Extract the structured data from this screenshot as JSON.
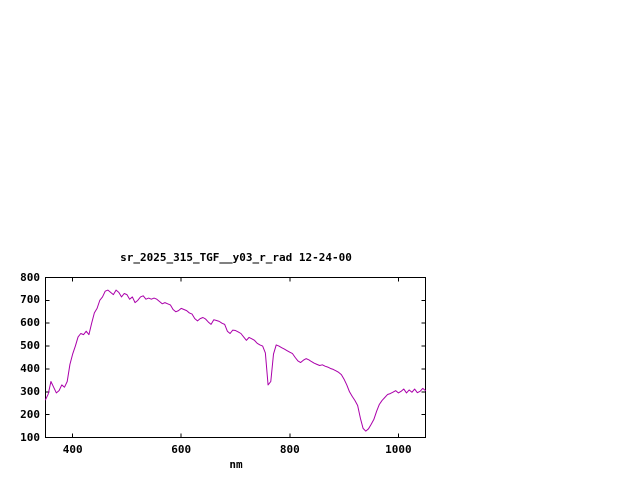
{
  "colors": {
    "line": "#aa00aa",
    "axis": "#000000",
    "background": "#ffffff",
    "text": "#000000"
  },
  "chart_data": {
    "type": "line",
    "title": "sr_2025_315_TGF__y03_r_rad 12-24-00",
    "xlabel": "nm",
    "ylabel": "",
    "xlim": [
      350,
      1050
    ],
    "ylim": [
      100,
      800
    ],
    "x_ticks": [
      400,
      600,
      800,
      1000
    ],
    "y_ticks": [
      100,
      200,
      300,
      400,
      500,
      600,
      700,
      800
    ],
    "grid": false,
    "legend": "none",
    "series_name": "sr_2025_315_TGF__y03_r_rad",
    "x": [
      350,
      355,
      360,
      365,
      370,
      375,
      380,
      385,
      390,
      395,
      400,
      405,
      410,
      415,
      420,
      425,
      430,
      435,
      440,
      445,
      450,
      455,
      460,
      465,
      470,
      475,
      480,
      485,
      490,
      495,
      500,
      505,
      510,
      515,
      520,
      525,
      530,
      535,
      540,
      545,
      550,
      555,
      560,
      565,
      570,
      575,
      580,
      585,
      590,
      595,
      600,
      605,
      610,
      615,
      620,
      625,
      630,
      635,
      640,
      645,
      650,
      655,
      660,
      665,
      670,
      675,
      680,
      685,
      690,
      695,
      700,
      705,
      710,
      715,
      720,
      725,
      730,
      735,
      740,
      745,
      750,
      755,
      760,
      765,
      770,
      775,
      780,
      785,
      790,
      795,
      800,
      805,
      810,
      815,
      820,
      825,
      830,
      835,
      840,
      845,
      850,
      855,
      860,
      865,
      870,
      875,
      880,
      885,
      890,
      895,
      900,
      905,
      910,
      915,
      920,
      925,
      930,
      935,
      940,
      945,
      950,
      955,
      960,
      965,
      970,
      975,
      980,
      985,
      990,
      995,
      1000,
      1005,
      1010,
      1015,
      1020,
      1025,
      1030,
      1035,
      1040,
      1045,
      1050
    ],
    "y": [
      265,
      290,
      345,
      320,
      295,
      305,
      330,
      320,
      345,
      420,
      465,
      500,
      540,
      555,
      550,
      565,
      550,
      600,
      645,
      665,
      700,
      715,
      740,
      745,
      735,
      725,
      745,
      735,
      715,
      730,
      725,
      705,
      715,
      690,
      700,
      715,
      720,
      705,
      710,
      705,
      710,
      705,
      695,
      685,
      690,
      685,
      680,
      660,
      650,
      655,
      665,
      660,
      655,
      645,
      640,
      620,
      610,
      620,
      625,
      618,
      605,
      595,
      615,
      612,
      608,
      600,
      595,
      565,
      555,
      570,
      568,
      562,
      555,
      540,
      525,
      538,
      532,
      525,
      512,
      505,
      500,
      470,
      330,
      345,
      465,
      505,
      500,
      493,
      487,
      480,
      473,
      467,
      450,
      435,
      428,
      438,
      445,
      440,
      432,
      425,
      420,
      415,
      418,
      412,
      408,
      402,
      398,
      392,
      385,
      375,
      355,
      330,
      300,
      280,
      262,
      240,
      185,
      140,
      128,
      138,
      158,
      180,
      215,
      245,
      262,
      275,
      288,
      292,
      298,
      305,
      295,
      302,
      312,
      295,
      308,
      298,
      312,
      296,
      302,
      315,
      305
    ]
  }
}
